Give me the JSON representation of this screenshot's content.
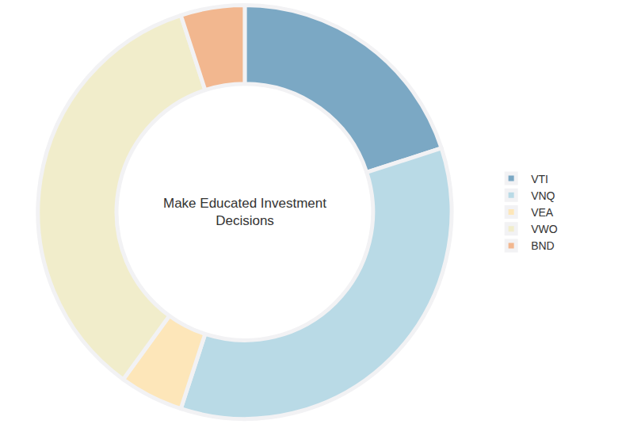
{
  "chart_data": {
    "type": "pie",
    "title": "Make Educated Investment Decisions",
    "categories": [
      "VTI",
      "VNQ",
      "VEA",
      "VWO",
      "BND"
    ],
    "values": [
      20,
      35,
      5,
      35,
      5
    ],
    "colors": [
      "#7ba8c4",
      "#b9dae6",
      "#fde6b9",
      "#f1edcb",
      "#f2b78f"
    ],
    "legend": "right",
    "data_labels": false
  }
}
